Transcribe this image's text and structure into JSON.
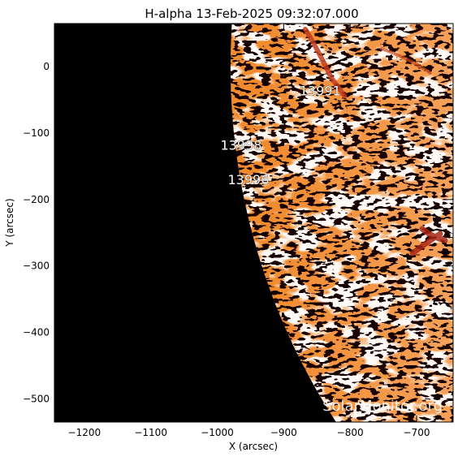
{
  "title": "H-alpha 13-Feb-2025 09:32:07.000",
  "watermark": "SolarMonitor.org",
  "colors": {
    "limb_base": "#f08a2c",
    "plage_white": "#fff4ea",
    "filament_red": "#b8321a",
    "space": "#000000"
  },
  "axes": {
    "xlabel": "X (arcsec)",
    "ylabel": "Y (arcsec)",
    "xlim": [
      -1245,
      -645
    ],
    "ylim": [
      -535,
      65
    ],
    "xticks": [
      {
        "value": -1200,
        "label": "−1200"
      },
      {
        "value": -1100,
        "label": "−1100"
      },
      {
        "value": -1000,
        "label": "−1000"
      },
      {
        "value": -900,
        "label": "−900"
      },
      {
        "value": -800,
        "label": "−800"
      },
      {
        "value": -700,
        "label": "−700"
      }
    ],
    "yticks": [
      {
        "value": 0,
        "label": "0"
      },
      {
        "value": -100,
        "label": "−100"
      },
      {
        "value": -200,
        "label": "−200"
      },
      {
        "value": -300,
        "label": "−300"
      },
      {
        "value": -400,
        "label": "−400"
      },
      {
        "value": -500,
        "label": "−500"
      }
    ]
  },
  "solar_radius_arcsec": 980,
  "regions": [
    {
      "label": "13991",
      "x": -845,
      "y": -43
    },
    {
      "label": "13998",
      "x": -964,
      "y": -125
    },
    {
      "label": "13996",
      "x": -953,
      "y": -177
    }
  ]
}
